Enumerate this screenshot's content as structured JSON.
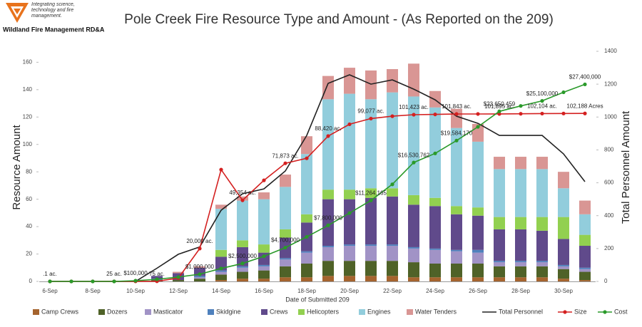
{
  "logo": {
    "tagline": "Integrating science, technology and fire management.",
    "org": "Wildland Fire Management RD&A"
  },
  "chart_data": {
    "type": "bar",
    "title": "Pole Creek Fire Resource Type and Amount - (As Reported on the 209)",
    "x_label": "Date of Submitted 209",
    "y_label": "Resource Amount",
    "y2_label": "Total Personnel Amount",
    "categories": [
      "6-Sep",
      null,
      "8-Sep",
      null,
      "10-Sep",
      null,
      "12-Sep",
      null,
      "14-Sep",
      null,
      "16-Sep",
      null,
      "18-Sep",
      null,
      "20-Sep",
      null,
      "22-Sep",
      null,
      "24-Sep",
      null,
      "26-Sep",
      null,
      "28-Sep",
      null,
      "30-Sep",
      null
    ],
    "ylim": [
      0,
      168
    ],
    "yticks": [
      0,
      20,
      40,
      60,
      80,
      100,
      120,
      140,
      160
    ],
    "y2lim": [
      0,
      1400
    ],
    "y2ticks": [
      0,
      200,
      400,
      600,
      800,
      1000,
      1200,
      1400
    ],
    "y3lim": [
      0,
      140000
    ],
    "y4lim": [
      0,
      32000000
    ],
    "stacked": true,
    "series": [
      {
        "name": "Camp Crews",
        "type": "bar",
        "color": "#a5642e",
        "values": [
          0,
          0,
          0,
          0,
          0,
          0,
          0,
          0,
          1,
          2,
          2,
          3,
          3,
          4,
          4,
          4,
          4,
          3,
          3,
          3,
          3,
          3,
          3,
          3,
          2,
          1
        ]
      },
      {
        "name": "Dozers",
        "type": "bar",
        "color": "#4f6228",
        "values": [
          0,
          0,
          0,
          0,
          0,
          1,
          1,
          2,
          4,
          5,
          6,
          8,
          10,
          11,
          11,
          11,
          11,
          11,
          10,
          10,
          10,
          8,
          8,
          8,
          7,
          6
        ]
      },
      {
        "name": "Masticator",
        "type": "bar",
        "color": "#a193c6",
        "values": [
          0,
          0,
          0,
          0,
          0,
          0,
          0,
          1,
          2,
          3,
          3,
          5,
          8,
          10,
          11,
          11,
          11,
          10,
          10,
          9,
          8,
          3,
          3,
          3,
          2,
          2
        ]
      },
      {
        "name": "Skidgine",
        "type": "bar",
        "color": "#4f81bd",
        "values": [
          0,
          0,
          0,
          0,
          0,
          1,
          0,
          1,
          1,
          1,
          1,
          1,
          1,
          1,
          1,
          1,
          1,
          1,
          1,
          1,
          2,
          1,
          1,
          1,
          1,
          1
        ]
      },
      {
        "name": "Crews",
        "type": "bar",
        "color": "#604a8b",
        "values": [
          0,
          0,
          0,
          0,
          0,
          2,
          5,
          6,
          10,
          14,
          9,
          15,
          21,
          34,
          33,
          34,
          35,
          31,
          31,
          26,
          25,
          23,
          23,
          22,
          19,
          16
        ]
      },
      {
        "name": "Helicopters",
        "type": "bar",
        "color": "#92d050",
        "values": [
          0,
          0,
          0,
          0,
          0,
          0,
          0,
          0,
          5,
          5,
          6,
          6,
          6,
          7,
          7,
          7,
          6,
          7,
          6,
          6,
          6,
          9,
          9,
          10,
          16,
          8
        ]
      },
      {
        "name": "Engines",
        "type": "bar",
        "color": "#92cddc",
        "values": [
          0,
          0,
          0,
          0,
          0,
          0,
          0,
          0,
          30,
          29,
          33,
          31,
          44,
          66,
          70,
          65,
          70,
          72,
          66,
          57,
          48,
          35,
          35,
          35,
          21,
          15
        ]
      },
      {
        "name": "Water Tenders",
        "type": "bar",
        "color": "#d99694",
        "values": [
          0,
          0,
          0,
          0,
          0,
          0,
          1,
          1,
          3,
          3,
          5,
          9,
          13,
          17,
          19,
          21,
          17,
          24,
          12,
          14,
          13,
          9,
          9,
          9,
          12,
          10
        ]
      },
      {
        "name": "Total Personnel",
        "type": "line",
        "axis": "y2",
        "color": "#222222",
        "values": [
          0,
          0,
          0,
          0,
          0,
          80,
          165,
          210,
          433,
          533,
          563,
          672,
          888,
          1205,
          1257,
          1200,
          1226,
          1170,
          1105,
          1005,
          962,
          888,
          888,
          888,
          776,
          607
        ]
      },
      {
        "name": "Size",
        "type": "line",
        "axis": "y3",
        "color": "#d42020",
        "markers": true,
        "values": [
          0.1,
          5,
          15,
          25,
          50,
          75,
          2000,
          20000,
          68000,
          49354,
          61500,
          71873,
          74900,
          88420,
          95600,
          99077,
          100500,
          101423,
          101600,
          101843,
          101870,
          101895,
          102000,
          102104,
          102150,
          102188
        ],
        "value_labels": [
          ".1 ac.",
          null,
          null,
          "25 ac.",
          null,
          "75 ac.",
          null,
          "20,000 ac.",
          null,
          "49,354 ac.",
          null,
          "71,873 ac.",
          null,
          "88,420 ac.",
          null,
          "99,077 ac.",
          null,
          "101,423 ac.",
          null,
          "101,843 ac.",
          null,
          "101,895 ac.",
          null,
          "102,104 ac.",
          null,
          "102,188 Acres"
        ]
      },
      {
        "name": "Cost",
        "type": "line",
        "axis": "y4",
        "color": "#2a9a2a",
        "markers": true,
        "values": [
          0,
          0,
          0,
          0,
          100000,
          300000,
          600000,
          1000000,
          1800000,
          2500000,
          3500000,
          4700000,
          6200000,
          7800000,
          9500000,
          11264165,
          13500000,
          16530762,
          17800000,
          19584170,
          21500000,
          23650459,
          24400000,
          25100000,
          26300000,
          27400000
        ],
        "value_labels": [
          null,
          null,
          null,
          null,
          "$100,000",
          null,
          null,
          "$1,000,000",
          null,
          "$2,500,000",
          null,
          "$4,700,000",
          null,
          "$7,800,000",
          null,
          "$11,264,165",
          null,
          "$16,530,762",
          null,
          "$19,584,170",
          null,
          "$23,650,459",
          null,
          "$25,100,000",
          null,
          "$27,400,000"
        ]
      }
    ],
    "legend": "bottom"
  }
}
